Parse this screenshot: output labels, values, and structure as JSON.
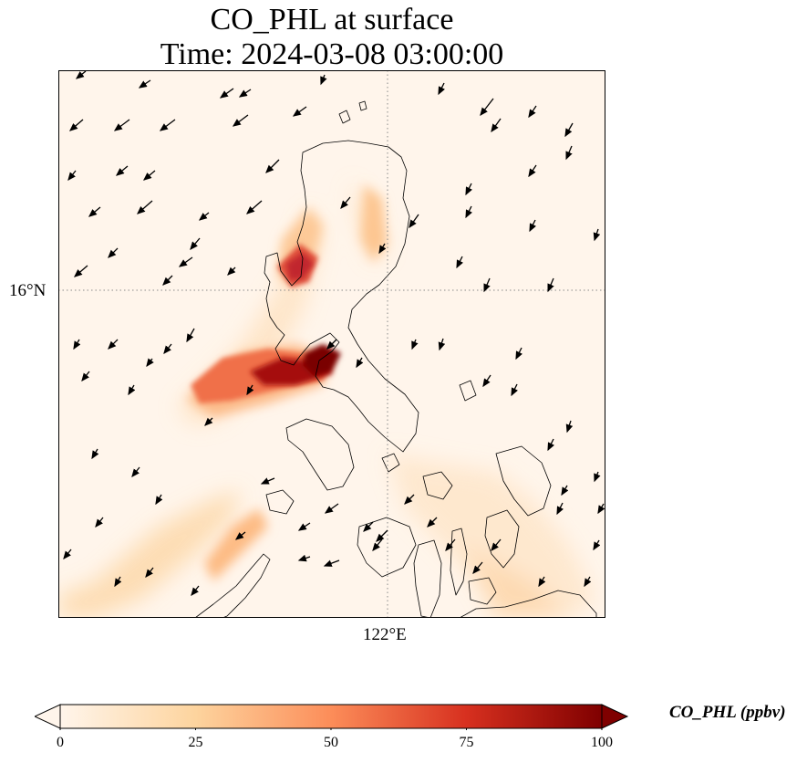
{
  "title_line1": "CO_PHL at surface",
  "title_line2": "Time: 2024-03-08 03:00:00",
  "map": {
    "gridline_lat_label": "16°N",
    "gridline_lon_label": "122°E",
    "background_color": "#fff5eb",
    "coastline_color": "#000000"
  },
  "colorbar": {
    "label": "CO_PHL (ppbv)",
    "colormap": "OrRd",
    "colors": [
      "#fff5eb",
      "#fdd49e",
      "#fc8d59",
      "#d7301f",
      "#7f0000"
    ],
    "min": 0,
    "max": 100,
    "ticks": [
      "0",
      "25",
      "50",
      "75",
      "100"
    ],
    "extend": "both"
  }
}
